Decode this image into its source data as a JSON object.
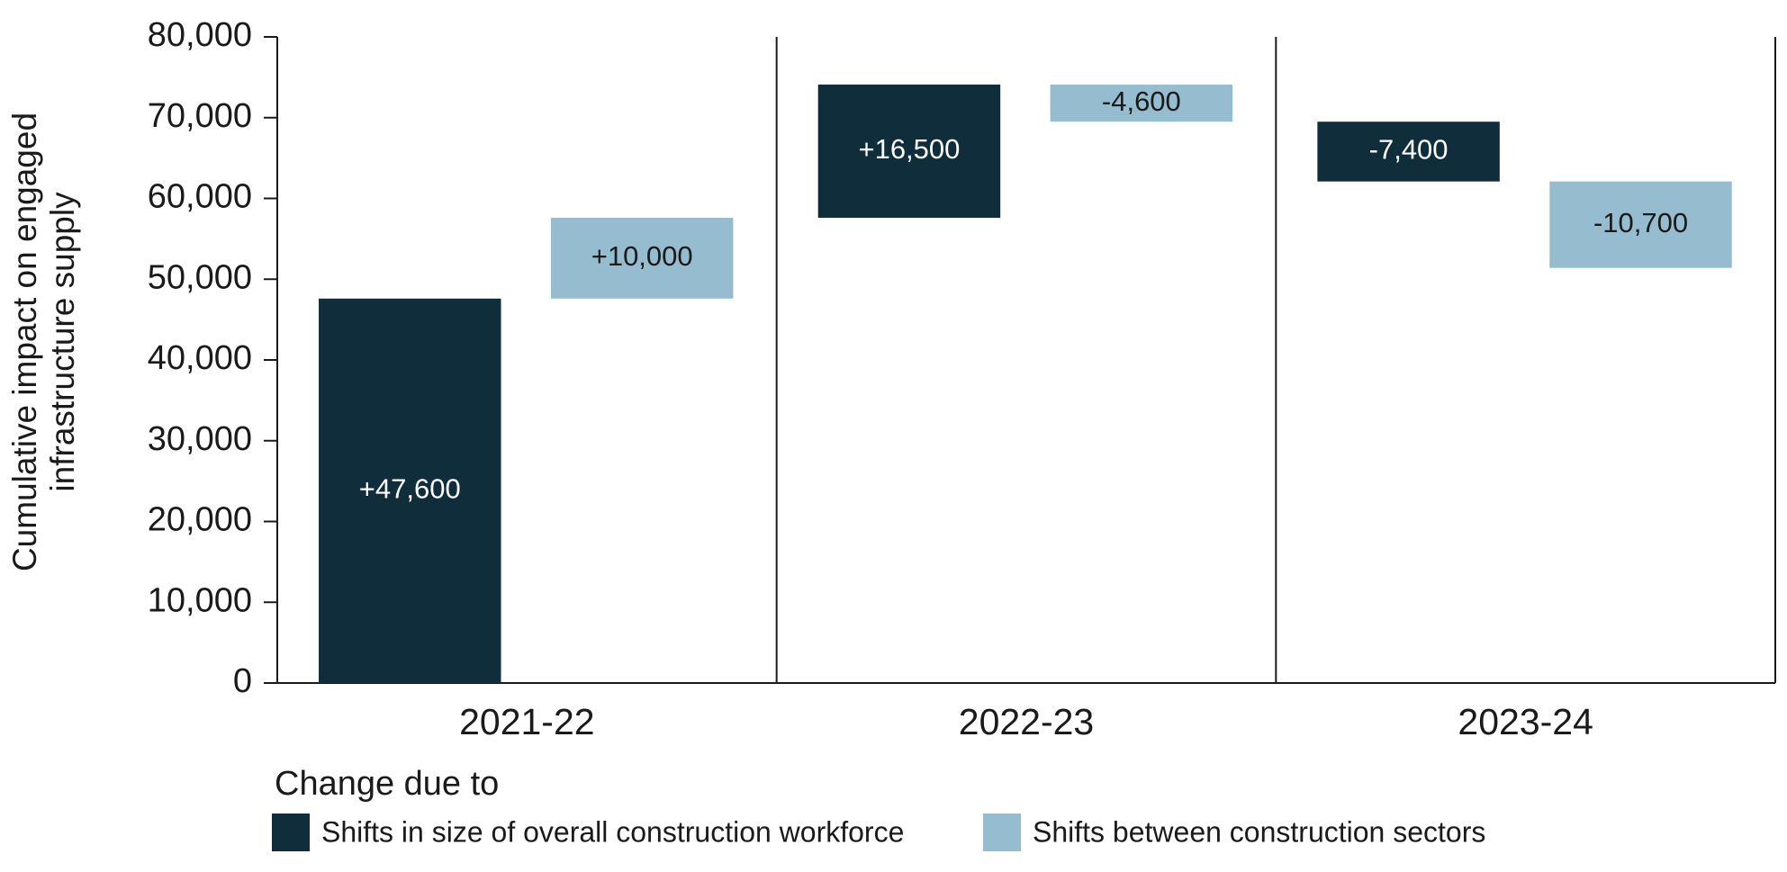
{
  "chart_data": {
    "type": "waterfall",
    "y_label": [
      "Cumulative impact on engaged",
      "infrastructure supply"
    ],
    "categories": [
      "2021-22",
      "2022-23",
      "2023-24"
    ],
    "legend_title": "Change due to",
    "series": [
      {
        "name": "Shifts in size of overall construction workforce",
        "color": "#0f2d3a",
        "label_color": "#ffffff",
        "values": [
          47600,
          16500,
          -7400
        ],
        "value_labels": [
          "+47,600",
          "+16,500",
          "-7,400"
        ]
      },
      {
        "name": "Shifts between construction sectors",
        "color": "#95bccf",
        "label_color": "#1a1a1a",
        "values": [
          10000,
          -4600,
          -10700
        ],
        "value_labels": [
          "+10,000",
          "-4,600",
          "-10,700"
        ]
      }
    ],
    "ylim": [
      0,
      80000
    ],
    "yticks": [
      0,
      {
        "value": 10000,
        "label": "10,000"
      },
      {
        "value": 20000,
        "label": "20,000"
      },
      {
        "value": 30000,
        "label": "30,000"
      },
      {
        "value": 40000,
        "label": "40,000"
      },
      {
        "value": 50000,
        "label": "50,000"
      },
      {
        "value": 60000,
        "label": "60,000"
      },
      {
        "value": 70000,
        "label": "70,000"
      },
      {
        "value": 80000,
        "label": "80,000"
      }
    ]
  }
}
